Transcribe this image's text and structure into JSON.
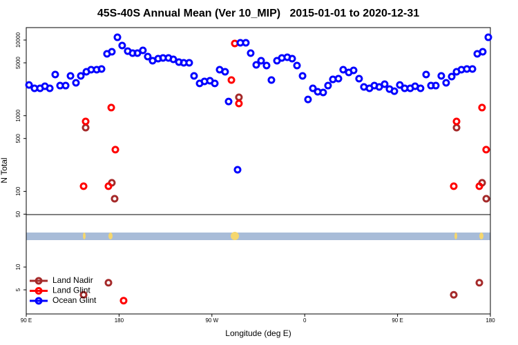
{
  "chart_data": {
    "type": "scatter",
    "title": "45S-40S Annual Mean (Ver 10_MIP)   2015-01-01 to 2020-12-31",
    "x_label": "Longitude (deg E)",
    "y_label": "N Total",
    "log_y": true,
    "legend": "lower left",
    "xlim": [
      90,
      540
    ],
    "xticks": [
      {
        "value": 90,
        "label": "90 E"
      },
      180,
      {
        "value": 270,
        "label": "90 W"
      },
      {
        "value": 360,
        "label": "0"
      },
      {
        "value": 450,
        "label": "90 E"
      },
      {
        "value": 540,
        "label": "180"
      }
    ],
    "ylim": [
      2.4,
      14600
    ],
    "yticks": [
      5,
      10,
      50,
      100,
      500,
      1000,
      5000,
      10000
    ],
    "series": [
      {
        "name": "Land Nadir",
        "color": "#a52a2a",
        "x": [
          147.6,
          173,
          175.7,
          296.2,
          507.2,
          532,
          536,
          145.6,
          169.7,
          504.5,
          529.3
        ],
        "values": [
          695,
          130,
          80,
          1750,
          695,
          130,
          80,
          4.3,
          6.2,
          4.3,
          6.2
        ]
      },
      {
        "name": "Land Glint",
        "color": "#ff0000",
        "x": [
          145.6,
          147.6,
          169.7,
          172.4,
          176.4,
          288.9,
          292.2,
          296.2,
          504.5,
          507.2,
          529.3,
          531.9,
          535.9,
          184.4
        ],
        "values": [
          117,
          840,
          117,
          1280,
          356,
          2960,
          9000,
          1450,
          117,
          840,
          117,
          1280,
          356,
          3.6
        ]
      },
      {
        "name": "Ocean Glint",
        "color": "#0000ff",
        "x": [
          92.7,
          98,
          103.4,
          108.1,
          112.8,
          118.1,
          122.8,
          128.2,
          132.9,
          138.2,
          142.9,
          148.3,
          152.9,
          158.3,
          163,
          168.3,
          173,
          178.4,
          183,
          188.4,
          193.1,
          197.8,
          203.1,
          207.8,
          212.5,
          217.9,
          222.6,
          227.9,
          232.6,
          238,
          242.7,
          248,
          252.7,
          258.1,
          262.8,
          268.1,
          272.8,
          277.5,
          282.8,
          286.2,
          294.9,
          297.6,
          302.9,
          307.6,
          313,
          317.7,
          323,
          327.7,
          333.1,
          337.8,
          343.1,
          347.8,
          352.5,
          357.9,
          363.2,
          367.9,
          372.6,
          377.9,
          382.6,
          387.3,
          392.7,
          397.3,
          402.7,
          407.4,
          412.7,
          417.4,
          422.8,
          427.5,
          432.2,
          437.5,
          442.2,
          446.9,
          452.2,
          456.9,
          462.3,
          467,
          472.3,
          477.7,
          482.4,
          487.1,
          492.4,
          497.1,
          502.5,
          507.2,
          511.9,
          517.2,
          522.6,
          527.3,
          532.6,
          538
        ],
        "values": [
          2550,
          2300,
          2300,
          2450,
          2300,
          3500,
          2500,
          2500,
          3360,
          2720,
          3360,
          3810,
          4060,
          4060,
          4140,
          6580,
          7000,
          10870,
          8460,
          7140,
          6710,
          6710,
          7300,
          6040,
          5330,
          5680,
          5800,
          5800,
          5560,
          5110,
          5000,
          5000,
          3360,
          2670,
          2840,
          2900,
          2670,
          4060,
          3810,
          1540,
          193,
          9200,
          9200,
          6710,
          4700,
          5330,
          4600,
          2960,
          5330,
          5800,
          5920,
          5680,
          4600,
          3360,
          1640,
          2300,
          2070,
          2030,
          2500,
          3020,
          3090,
          4060,
          3730,
          3970,
          3090,
          2400,
          2300,
          2500,
          2400,
          2610,
          2250,
          2110,
          2550,
          2300,
          2300,
          2450,
          2300,
          3500,
          2500,
          2500,
          3360,
          2720,
          3290,
          3810,
          4060,
          4140,
          4140,
          6580,
          7000,
          10870
        ]
      }
    ]
  }
}
